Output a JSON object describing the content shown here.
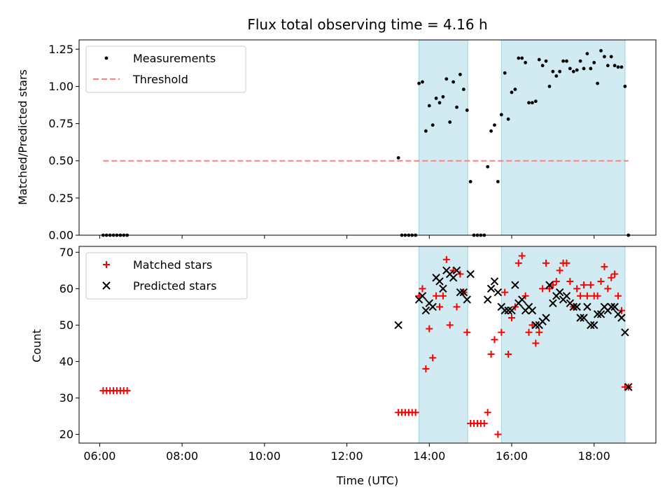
{
  "chart_data": {
    "type": "scatter",
    "title": "Flux total observing time = 4.16 h",
    "xlabel": "Time (UTC)",
    "x_ticks": [
      "06:00",
      "08:00",
      "10:00",
      "12:00",
      "14:00",
      "16:00",
      "18:00"
    ],
    "x_range": [
      "05:30",
      "19:30"
    ],
    "shaded_intervals": [
      [
        "13:45",
        "14:56"
      ],
      [
        "15:45",
        "18:45"
      ]
    ],
    "colors": {
      "shade": "#add8e6",
      "measurements": "#000000",
      "threshold": "#ff7f7f",
      "matched": "#ff0000",
      "predicted": "#000000"
    },
    "panels": [
      {
        "name": "ratio",
        "ylabel": "Matched/Predicted stars",
        "ylim": [
          0,
          1.3125
        ],
        "y_ticks": [
          "0.00",
          "0.25",
          "0.50",
          "0.75",
          "1.00",
          "1.25"
        ],
        "legend": {
          "position": "top-left",
          "entries": [
            "Measurements",
            "Threshold"
          ]
        },
        "threshold": {
          "value": 0.5,
          "x_start": "06:05",
          "x_end": "18:50"
        },
        "series": [
          {
            "name": "Measurements",
            "x": [
              "06:05",
              "06:10",
              "06:15",
              "06:20",
              "06:25",
              "06:30",
              "06:35",
              "06:40",
              "13:15",
              "13:20",
              "13:25",
              "13:30",
              "13:35",
              "13:40",
              "13:45",
              "13:50",
              "13:55",
              "14:00",
              "14:05",
              "14:10",
              "14:15",
              "14:20",
              "14:25",
              "14:30",
              "14:35",
              "14:40",
              "14:45",
              "14:50",
              "14:55",
              "15:00",
              "15:05",
              "15:10",
              "15:15",
              "15:20",
              "15:25",
              "15:30",
              "15:35",
              "15:40",
              "15:45",
              "15:50",
              "15:55",
              "16:00",
              "16:05",
              "16:10",
              "16:15",
              "16:20",
              "16:25",
              "16:30",
              "16:35",
              "16:40",
              "16:45",
              "16:50",
              "16:55",
              "17:00",
              "17:05",
              "17:10",
              "17:15",
              "17:20",
              "17:25",
              "17:30",
              "17:35",
              "17:40",
              "17:45",
              "17:50",
              "17:55",
              "18:00",
              "18:05",
              "18:10",
              "18:15",
              "18:20",
              "18:25",
              "18:30",
              "18:35",
              "18:40",
              "18:45",
              "18:50"
            ],
            "values": [
              0,
              0,
              0,
              0,
              0,
              0,
              0,
              0,
              0.52,
              0,
              0,
              0,
              0,
              0,
              1.02,
              1.03,
              0.7,
              0.87,
              0.74,
              0.92,
              0.89,
              0.93,
              1.05,
              0.76,
              1.03,
              0.86,
              1.08,
              0.98,
              0.84,
              0.36,
              0,
              0,
              0,
              0,
              0.46,
              0.7,
              0.74,
              0.36,
              0.81,
              1.09,
              0.78,
              0.96,
              0.98,
              1.19,
              1.19,
              1.16,
              0.89,
              0.89,
              0.9,
              1.18,
              1.14,
              1.17,
              1.0,
              1.1,
              1.07,
              1.1,
              1.17,
              1.17,
              1.12,
              1.1,
              1.11,
              1.17,
              1.12,
              1.22,
              1.12,
              1.16,
              1.02,
              1.24,
              1.2,
              1.14,
              1.2,
              1.14,
              1.13,
              1.13,
              1.0,
              0
            ]
          }
        ]
      },
      {
        "name": "count",
        "ylabel": "Count",
        "ylim": [
          17.6,
          71.6
        ],
        "y_ticks": [
          "20",
          "30",
          "40",
          "50",
          "60",
          "70"
        ],
        "legend": {
          "position": "top-left",
          "entries": [
            "Matched stars",
            "Predicted stars"
          ]
        },
        "series": [
          {
            "name": "Matched stars",
            "x": [
              "06:05",
              "06:10",
              "06:15",
              "06:20",
              "06:25",
              "06:30",
              "06:35",
              "06:40",
              "13:15",
              "13:20",
              "13:25",
              "13:30",
              "13:35",
              "13:40",
              "13:45",
              "13:50",
              "13:55",
              "14:00",
              "14:05",
              "14:10",
              "14:15",
              "14:20",
              "14:25",
              "14:30",
              "14:35",
              "14:40",
              "14:45",
              "14:50",
              "14:55",
              "15:00",
              "15:05",
              "15:10",
              "15:15",
              "15:20",
              "15:25",
              "15:30",
              "15:35",
              "15:40",
              "15:45",
              "15:50",
              "15:55",
              "16:00",
              "16:05",
              "16:10",
              "16:15",
              "16:20",
              "16:25",
              "16:30",
              "16:35",
              "16:40",
              "16:45",
              "16:50",
              "16:55",
              "17:00",
              "17:05",
              "17:10",
              "17:15",
              "17:20",
              "17:25",
              "17:30",
              "17:35",
              "17:40",
              "17:45",
              "17:50",
              "17:55",
              "18:00",
              "18:05",
              "18:10",
              "18:15",
              "18:20",
              "18:25",
              "18:30",
              "18:35",
              "18:40",
              "18:45",
              "18:50"
            ],
            "values": [
              32,
              32,
              32,
              32,
              32,
              32,
              32,
              32,
              26,
              26,
              26,
              26,
              26,
              26,
              58,
              60,
              38,
              49,
              41,
              58,
              55,
              58,
              68,
              50,
              65,
              55,
              64,
              59,
              48,
              23,
              23,
              23,
              23,
              23,
              26,
              42,
              46,
              20,
              48,
              59,
              42,
              52,
              55,
              67,
              69,
              58,
              48,
              50,
              45,
              48,
              60,
              67,
              60,
              61,
              62,
              65,
              67,
              67,
              62,
              55,
              60,
              58,
              61,
              58,
              61,
              58,
              58,
              62,
              66,
              60,
              63,
              64,
              58,
              54,
              33,
              33
            ]
          },
          {
            "name": "Predicted stars",
            "x": [
              "13:15",
              "13:45",
              "13:50",
              "13:55",
              "14:00",
              "14:05",
              "14:10",
              "14:15",
              "14:20",
              "14:25",
              "14:30",
              "14:35",
              "14:40",
              "14:45",
              "14:50",
              "14:55",
              "15:00",
              "15:25",
              "15:30",
              "15:35",
              "15:40",
              "15:45",
              "15:50",
              "15:55",
              "16:00",
              "16:05",
              "16:10",
              "16:15",
              "16:20",
              "16:25",
              "16:30",
              "16:35",
              "16:40",
              "16:45",
              "16:50",
              "16:55",
              "17:00",
              "17:05",
              "17:10",
              "17:15",
              "17:20",
              "17:25",
              "17:30",
              "17:35",
              "17:40",
              "17:45",
              "17:50",
              "17:55",
              "18:00",
              "18:05",
              "18:10",
              "18:15",
              "18:20",
              "18:25",
              "18:30",
              "18:35",
              "18:40",
              "18:45",
              "18:50"
            ],
            "values": [
              50,
              57,
              58,
              54,
              56,
              55,
              63,
              62,
              60,
              65,
              64,
              63,
              65,
              59,
              59,
              57,
              64,
              57,
              60,
              62,
              59,
              55,
              54,
              54,
              54,
              61,
              56,
              57,
              54,
              55,
              54,
              50,
              50,
              51,
              52,
              61,
              56,
              58,
              59,
              57,
              58,
              56,
              55,
              55,
              52,
              52,
              55,
              50,
              50,
              53,
              53,
              55,
              54,
              55,
              55,
              53,
              52,
              48,
              33
            ]
          }
        ]
      }
    ]
  }
}
